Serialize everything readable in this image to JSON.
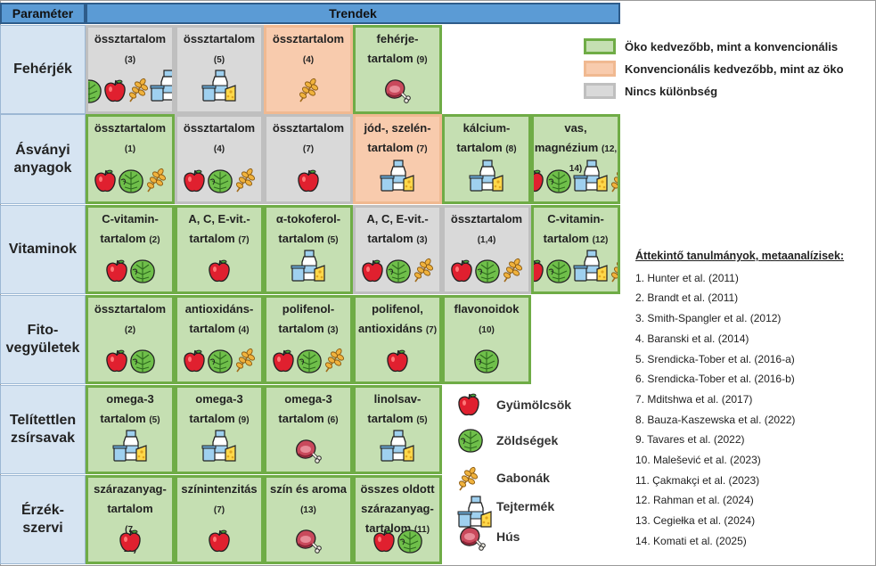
{
  "header": {
    "param": "Paraméter",
    "trends": "Trendek"
  },
  "legend": {
    "colors": [
      {
        "key": "eco",
        "label": "Öko kedvezőbb, mint a konvencionális",
        "color": "#c5dfb2"
      },
      {
        "key": "conv",
        "label": "Konvencionális kedvezőbb, mint az öko",
        "color": "#f8cbad"
      },
      {
        "key": "none",
        "label": "Nincs különbség",
        "color": "#d9d9d9"
      }
    ],
    "icons": [
      {
        "icon": "apple",
        "label": "Gyümölcsök"
      },
      {
        "icon": "cabbage",
        "label": "Zöldségek"
      },
      {
        "icon": "wheat",
        "label": "Gabonák"
      },
      {
        "icon": "dairy",
        "label": "Tejtermék"
      },
      {
        "icon": "meat",
        "label": "Hús"
      }
    ]
  },
  "rows": [
    {
      "label": "Fehérjék",
      "cells": [
        {
          "text": "össztartalom",
          "ref": "(3)",
          "status": "none",
          "icons": [
            "cabbage",
            "apple",
            "wheat",
            "dairy"
          ]
        },
        {
          "text": "össztartalom",
          "ref": "(5)",
          "status": "none",
          "icons": [
            "dairy"
          ]
        },
        {
          "text": "össztartalom",
          "ref": "(4)",
          "status": "conv",
          "icons": [
            "wheat"
          ]
        },
        {
          "text": "fehérje-\ntartalom",
          "ref": "(9)",
          "status": "eco",
          "icons": [
            "meat"
          ]
        }
      ]
    },
    {
      "label": "Ásványi\nanyagok",
      "cells": [
        {
          "text": "össztartalom",
          "ref": "(1)",
          "status": "eco",
          "icons": [
            "apple",
            "cabbage",
            "wheat"
          ]
        },
        {
          "text": "össztartalom",
          "ref": "(4)",
          "status": "none",
          "icons": [
            "apple",
            "cabbage",
            "wheat"
          ]
        },
        {
          "text": "össztartalom",
          "ref": "(7)",
          "status": "none",
          "icons": [
            "apple"
          ]
        },
        {
          "text": "jód-, szelén-\ntartalom",
          "ref": "(7)",
          "status": "conv",
          "icons": [
            "dairy"
          ]
        },
        {
          "text": "kálcium-\ntartalom",
          "ref": "(8)",
          "status": "eco",
          "icons": [
            "dairy"
          ]
        },
        {
          "text": "vas,\nmagnézium",
          "ref": "(12, 14)",
          "status": "eco",
          "icons": [
            "apple",
            "cabbage",
            "dairy",
            "wheat"
          ]
        }
      ]
    },
    {
      "label": "Vitaminok",
      "cells": [
        {
          "text": "C-vitamin-\ntartalom",
          "ref": "(2)",
          "status": "eco",
          "icons": [
            "apple",
            "cabbage"
          ]
        },
        {
          "text": "A, C, E-vit.-\ntartalom",
          "ref": "(7)",
          "status": "eco",
          "icons": [
            "apple"
          ]
        },
        {
          "text": "α-tokoferol-\ntartalom",
          "ref": "(5)",
          "status": "eco",
          "icons": [
            "dairy"
          ]
        },
        {
          "text": "A, C, E-vit.-\ntartalom",
          "ref": "(3)",
          "status": "none",
          "icons": [
            "apple",
            "cabbage",
            "wheat"
          ]
        },
        {
          "text": "össztartalom",
          "ref": "(1,4)",
          "status": "none",
          "icons": [
            "apple",
            "cabbage",
            "wheat"
          ]
        },
        {
          "text": "C-vitamin-\ntartalom",
          "ref": "(12)",
          "status": "eco",
          "icons": [
            "apple",
            "cabbage",
            "dairy",
            "wheat"
          ]
        }
      ]
    },
    {
      "label": "Fito-\nvegyületek",
      "cells": [
        {
          "text": "össztartalom",
          "ref": "(2)",
          "status": "eco",
          "icons": [
            "apple",
            "cabbage"
          ]
        },
        {
          "text": "antioxidáns-\ntartalom",
          "ref": "(4)",
          "status": "eco",
          "icons": [
            "apple",
            "cabbage",
            "wheat"
          ]
        },
        {
          "text": "polifenol-\ntartalom",
          "ref": "(3)",
          "status": "eco",
          "icons": [
            "apple",
            "cabbage",
            "wheat"
          ]
        },
        {
          "text": "polifenol,\nantioxidáns",
          "ref": "(7)",
          "status": "eco",
          "icons": [
            "apple"
          ]
        },
        {
          "text": "flavonoidok",
          "ref": "(10)",
          "status": "eco",
          "icons": [
            "cabbage"
          ]
        }
      ]
    },
    {
      "label": "Telítettlen\nzsírsavak",
      "cells": [
        {
          "text": "omega-3\ntartalom",
          "ref": "(5)",
          "status": "eco",
          "icons": [
            "dairy"
          ]
        },
        {
          "text": "omega-3\ntartalom",
          "ref": "(9)",
          "status": "eco",
          "icons": [
            "dairy"
          ]
        },
        {
          "text": "omega-3\ntartalom",
          "ref": "(6)",
          "status": "eco",
          "icons": [
            "meat"
          ]
        },
        {
          "text": "linolsav-\ntartalom",
          "ref": "(5)",
          "status": "eco",
          "icons": [
            "dairy"
          ]
        }
      ]
    },
    {
      "label": "Érzék-\nszervi",
      "cells": [
        {
          "text": "szárazanyag-\ntartalom",
          "ref": "(7,\n12)",
          "status": "eco",
          "icons": [
            "apple"
          ]
        },
        {
          "text": "színintenzitás",
          "ref": "(7)",
          "status": "eco",
          "icons": [
            "apple"
          ]
        },
        {
          "text": "szín és aroma",
          "ref": "(13)",
          "status": "eco",
          "icons": [
            "meat"
          ]
        },
        {
          "text": "összes oldott\nszárazanyag-\ntartalom",
          "ref": "(11)",
          "status": "eco",
          "icons": [
            "apple",
            "cabbage"
          ]
        }
      ]
    }
  ],
  "references": {
    "title": "Áttekintő tanulmányok, metaanalízisek:",
    "items": [
      "1. Hunter et al. (2011)",
      "2. Brandt et al. (2011)",
      "3. Smith-Spangler et al. (2012)",
      "4. Baranski et al. (2014)",
      "5. Srendicka-Tober et al. (2016-a)",
      "6. Srendicka-Tober et al. (2016-b)",
      "7. Mditshwa et al. (2017)",
      "8. Bauza-Kaszewska et al. (2022)",
      "9. Tavares et al. (2022)",
      "10. Malešević et al. (2023)",
      "11. Çakmakçi et al. (2023)",
      "12. Rahman et al. (2024)",
      "13. Cegiełka et al. (2024)",
      "14. Komati et al. (2025)"
    ]
  }
}
